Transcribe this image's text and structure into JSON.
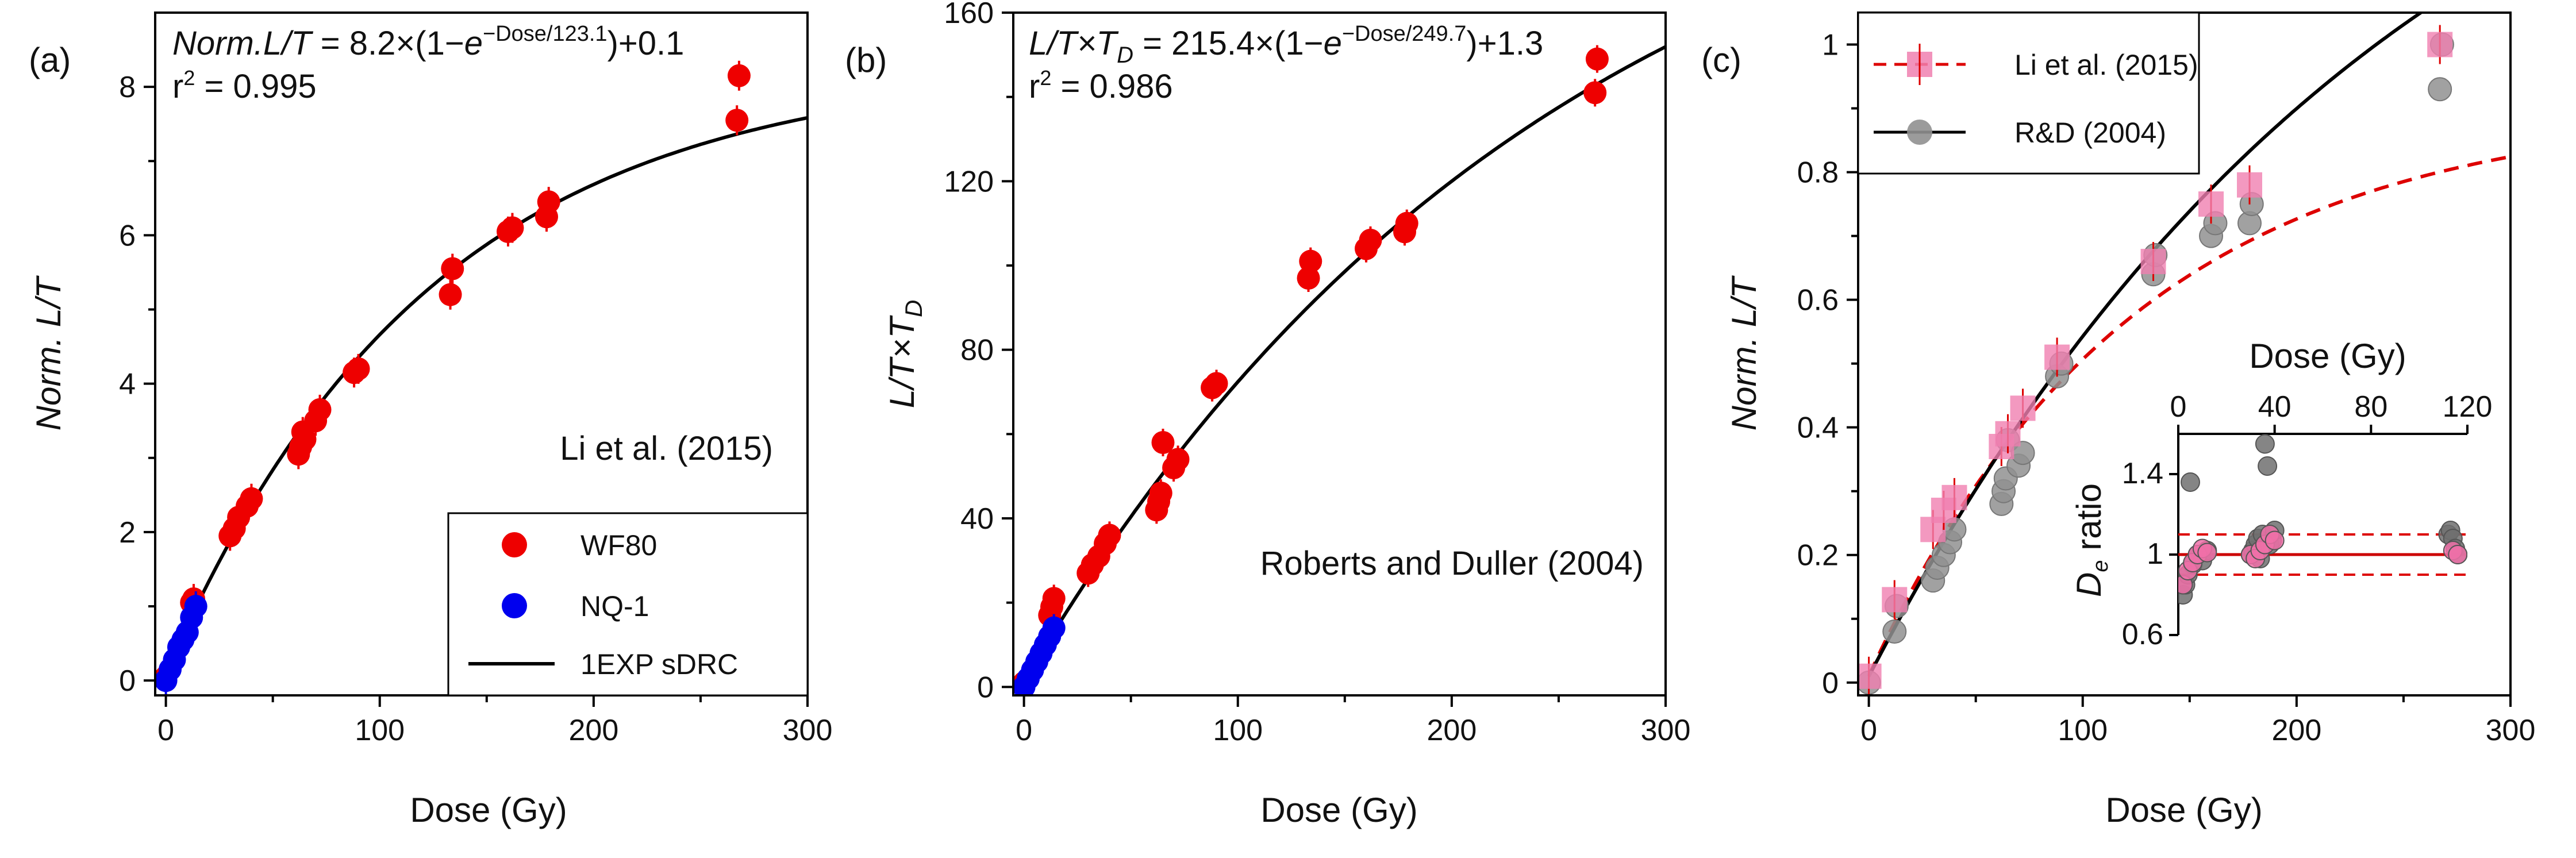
{
  "chart_data": [
    {
      "panel": "(a)",
      "type": "scatter",
      "equation": "Norm.L/T = 8.2×(1−e^(−Dose/123.1))+0.1",
      "equation_parts": {
        "lhs": "Norm.L/T",
        "rhs_a": " = 8.2×(1−",
        "e": "e",
        "sup": "−Dose/123.1",
        "rhs_b": ")+0.1"
      },
      "r2": "r² = 0.995",
      "r2_parts": {
        "r": "r",
        "sup": "2",
        "rest": " = 0.995"
      },
      "annotation": "Li et al. (2015)",
      "xlabel": "Dose (Gy)",
      "ylabel": "Norm. L/T",
      "ylabel_parts": {
        "prefix": "Norm. ",
        "italic": "L/T"
      },
      "xlim": [
        -5,
        300
      ],
      "ylim": [
        -0.2,
        9
      ],
      "xticks": [
        0,
        100,
        200,
        300
      ],
      "yticks": [
        0,
        2,
        4,
        6,
        8
      ],
      "legend_position": "bottom-right",
      "legend": [
        {
          "label": "WF80",
          "marker": "circle",
          "color": "#ee0000"
        },
        {
          "label": "NQ-1",
          "marker": "circle",
          "color": "#0000ee"
        },
        {
          "label": "1EXP sDRC",
          "marker": "line",
          "color": "#000000"
        }
      ],
      "fit": {
        "name": "1EXP sDRC",
        "a": 8.2,
        "d0": 123.1,
        "c": 0.1,
        "color": "#000000"
      },
      "series": [
        {
          "name": "WF80",
          "color": "#ee0000",
          "x": [
            0,
            12,
            13,
            30,
            32,
            34,
            38,
            40,
            62,
            63,
            64,
            65,
            70,
            72,
            88,
            90,
            133,
            134,
            160,
            162,
            178,
            179,
            267,
            268
          ],
          "y": [
            0.05,
            1.05,
            1.1,
            1.95,
            2.05,
            2.2,
            2.35,
            2.45,
            3.05,
            3.15,
            3.35,
            3.25,
            3.5,
            3.65,
            4.15,
            4.2,
            5.2,
            5.55,
            6.05,
            6.1,
            6.25,
            6.45,
            7.55,
            8.15
          ]
        },
        {
          "name": "NQ-1",
          "color": "#0000ee",
          "x": [
            0,
            2,
            4,
            6,
            8,
            10,
            12,
            14
          ],
          "y": [
            0.0,
            0.15,
            0.28,
            0.45,
            0.55,
            0.65,
            0.85,
            1.0
          ]
        }
      ]
    },
    {
      "panel": "(b)",
      "type": "scatter",
      "equation": "L/T×T_D = 215.4×(1−e^(−Dose/249.7))+1.3",
      "equation_parts": {
        "lhs": "L/T×T",
        "sub": "D",
        "rhs_a": " = 215.4×(1−",
        "e": "e",
        "sup": "−Dose/249.7",
        "rhs_b": ")+1.3"
      },
      "r2": "r² = 0.986",
      "r2_parts": {
        "r": "r",
        "sup": "2",
        "rest": " = 0.986"
      },
      "annotation": "Roberts and Duller (2004)",
      "xlabel": "Dose (Gy)",
      "ylabel": "L/T×T_D",
      "ylabel_parts": {
        "main": "L/T×T",
        "sub": "D"
      },
      "xlim": [
        -5,
        300
      ],
      "ylim": [
        -2,
        160
      ],
      "xticks": [
        0,
        100,
        200,
        300
      ],
      "yticks": [
        0,
        40,
        80,
        120,
        160
      ],
      "fit": {
        "a": 215.4,
        "d0": 249.7,
        "c": 1.3,
        "color": "#000000"
      },
      "series": [
        {
          "name": "WF80",
          "color": "#ee0000",
          "x": [
            0,
            12,
            13,
            14,
            30,
            32,
            35,
            38,
            40,
            62,
            63,
            64,
            65,
            70,
            72,
            88,
            90,
            133,
            134,
            160,
            162,
            178,
            179,
            267,
            268
          ],
          "y": [
            1,
            17,
            19,
            21,
            27,
            29,
            31,
            34,
            36,
            42,
            44,
            46,
            58,
            52,
            54,
            71,
            72,
            97,
            101,
            104,
            106,
            108,
            110,
            141,
            149
          ]
        },
        {
          "name": "NQ-1",
          "color": "#0000ee",
          "x": [
            0,
            2,
            4,
            6,
            8,
            10,
            12,
            14
          ],
          "y": [
            0,
            2,
            4,
            6,
            8,
            10,
            12,
            14
          ]
        }
      ]
    },
    {
      "panel": "(c)",
      "type": "scatter",
      "xlabel": "Dose (Gy)",
      "ylabel": "Norm. L/T",
      "ylabel_parts": {
        "prefix": "Norm. ",
        "italic": "L/T"
      },
      "xlim": [
        -5,
        300
      ],
      "ylim": [
        -0.02,
        1.05
      ],
      "xticks": [
        0,
        100,
        200,
        300
      ],
      "yticks": [
        0,
        0.2,
        0.4,
        0.6,
        0.8,
        1
      ],
      "ytick_labels": [
        "0",
        "0.2",
        "0.4",
        "0.6",
        "0.8",
        "1"
      ],
      "legend_position": "top-left",
      "legend": [
        {
          "label": "Li et al. (2015)",
          "marker": "square",
          "color": "#f080b0",
          "line": "dashed",
          "line_color": "#dd0000"
        },
        {
          "label": "R&D (2004)",
          "marker": "circle",
          "color": "#909090",
          "line": "solid",
          "line_color": "#000000"
        }
      ],
      "series": [
        {
          "name": "Li et al. (2015)",
          "color": "#f080b0",
          "x": [
            0,
            12,
            30,
            35,
            40,
            62,
            65,
            72,
            88,
            133,
            160,
            178,
            267
          ],
          "y": [
            0.01,
            0.13,
            0.24,
            0.27,
            0.29,
            0.37,
            0.39,
            0.43,
            0.51,
            0.66,
            0.75,
            0.78,
            1.0
          ]
        },
        {
          "name": "R&D (2004)",
          "color": "#909090",
          "x": [
            0,
            12,
            13,
            30,
            32,
            35,
            38,
            40,
            62,
            63,
            64,
            65,
            70,
            72,
            88,
            90,
            133,
            134,
            160,
            162,
            178,
            179,
            267,
            268
          ],
          "y": [
            0.0,
            0.08,
            0.12,
            0.16,
            0.18,
            0.2,
            0.22,
            0.24,
            0.28,
            0.3,
            0.32,
            0.38,
            0.34,
            0.36,
            0.48,
            0.5,
            0.64,
            0.67,
            0.7,
            0.72,
            0.72,
            0.75,
            0.93,
            1.0
          ]
        }
      ],
      "fits": [
        {
          "name": "Li et al. (2015)",
          "a": 0.8913,
          "d0": 123.1,
          "c": 0.0109,
          "style": "dashed",
          "color": "#dd0000"
        },
        {
          "name": "R&D (2004)",
          "a": 1.6148,
          "d0": 249.7,
          "c": 0.0097,
          "style": "solid",
          "color": "#000000"
        }
      ],
      "inset": {
        "type": "scatter",
        "xlabel": "Dose (Gy)",
        "ylabel": "De ratio",
        "ylabel_parts": {
          "main": "D",
          "sub": "e",
          "rest": " ratio"
        },
        "xlim": [
          0,
          120
        ],
        "ylim": [
          0.6,
          1.6
        ],
        "xticks": [
          0,
          40,
          80,
          120
        ],
        "yticks": [
          0.6,
          1,
          1.4
        ],
        "ytick_labels": [
          "0.6",
          "1",
          "1.4"
        ],
        "reference_line": 1.0,
        "bounds": [
          0.9,
          1.1
        ],
        "series": [
          {
            "name": "R&D (2004)",
            "color": "#707070",
            "x": [
              2,
              3,
              4,
              5,
              6,
              8,
              10,
              12,
              30,
              31,
              32,
              33,
              34,
              35,
              36,
              37,
              38,
              39,
              40,
              112,
              113,
              114,
              115,
              116
            ],
            "y": [
              0.8,
              0.85,
              0.9,
              1.36,
              0.95,
              1.0,
              0.97,
              1.02,
              1.0,
              1.02,
              1.05,
              1.08,
              0.98,
              1.1,
              1.55,
              1.44,
              1.05,
              1.07,
              1.12,
              1.1,
              1.12,
              1.08,
              1.03,
              1.0
            ]
          },
          {
            "name": "Li et al. (2015)",
            "color": "#f070a8",
            "x": [
              2,
              4,
              6,
              8,
              10,
              12,
              30,
              32,
              34,
              36,
              38,
              40,
              114,
              116
            ],
            "y": [
              0.85,
              0.92,
              0.96,
              1.0,
              1.03,
              1.01,
              1.0,
              0.98,
              1.02,
              1.05,
              1.1,
              1.07,
              1.02,
              1.0
            ]
          }
        ]
      }
    }
  ]
}
